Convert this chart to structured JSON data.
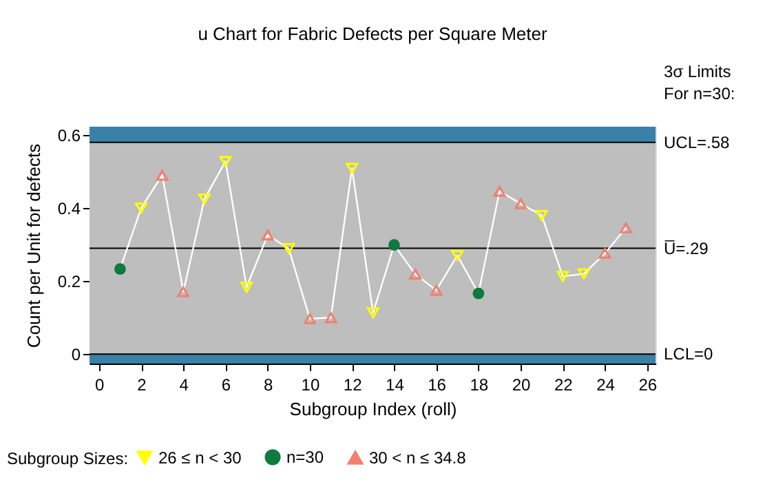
{
  "chart_data": {
    "type": "scatter",
    "title": "u Chart for Fabric Defects per Square Meter",
    "xlabel": "Subgroup Index (roll)",
    "ylabel": "Count per Unit for defects",
    "legend_title": "Subgroup Sizes:",
    "xlim": [
      -0.45,
      26.4
    ],
    "xticks": [
      0,
      2,
      4,
      6,
      8,
      10,
      12,
      14,
      16,
      18,
      20,
      22,
      24,
      26
    ],
    "ylim": [
      -0.026,
      0.623
    ],
    "yticks": [
      0,
      0.2,
      0.4,
      0.6
    ],
    "legend": "bottom",
    "series": [
      {
        "type": "line",
        "color": "#ffffff",
        "marker": "none",
        "x": [
          1,
          2,
          3,
          4,
          5,
          6,
          7,
          8,
          9,
          10,
          11,
          12,
          13,
          14,
          15,
          16,
          17,
          18,
          19,
          20,
          21,
          22,
          23,
          24,
          25
        ],
        "values": [
          0.233,
          0.4,
          0.49,
          0.171,
          0.425,
          0.528,
          0.183,
          0.326,
          0.289,
          0.097,
          0.1,
          0.509,
          0.113,
          0.299,
          0.219,
          0.175,
          0.27,
          0.166,
          0.446,
          0.412,
          0.38,
          0.213,
          0.22,
          0.276,
          0.346
        ]
      },
      {
        "name": "26 ≤ n < 30",
        "color": "#ffff00",
        "marker": "triangle-down",
        "x": [
          2,
          5,
          6,
          7,
          9,
          12,
          13,
          17,
          21,
          22,
          23
        ],
        "values": [
          0.4,
          0.425,
          0.528,
          0.183,
          0.289,
          0.509,
          0.113,
          0.27,
          0.38,
          0.213,
          0.22
        ]
      },
      {
        "name": "n=30",
        "color": "#0e7a3e",
        "marker": "circle",
        "x": [
          1,
          14,
          18
        ],
        "values": [
          0.233,
          0.299,
          0.166
        ]
      },
      {
        "name": "30 < n ≤ 34.8",
        "color": "#f08070",
        "marker": "triangle-up",
        "x": [
          3,
          4,
          8,
          10,
          11,
          15,
          16,
          19,
          20,
          24,
          25
        ],
        "values": [
          0.49,
          0.171,
          0.326,
          0.097,
          0.1,
          0.219,
          0.175,
          0.446,
          0.412,
          0.276,
          0.346
        ]
      }
    ],
    "ref_lines": [
      {
        "axis": "y",
        "value": 0.58,
        "label": "UCL=.58",
        "color": "#000000"
      },
      {
        "axis": "y",
        "value": 0.29,
        "label": "U̅=.29",
        "color": "#000000"
      },
      {
        "axis": "y",
        "value": 0,
        "label": "LCL=0",
        "color": "#000000"
      }
    ],
    "bands": [
      {
        "axis": "y",
        "from": 0.58,
        "to": 0.623,
        "color": "#3a81a8"
      },
      {
        "axis": "y",
        "from": -0.026,
        "to": 0,
        "color": "#3a81a8"
      }
    ],
    "annotations": [
      "3σ Limits",
      "For n=30:"
    ]
  }
}
